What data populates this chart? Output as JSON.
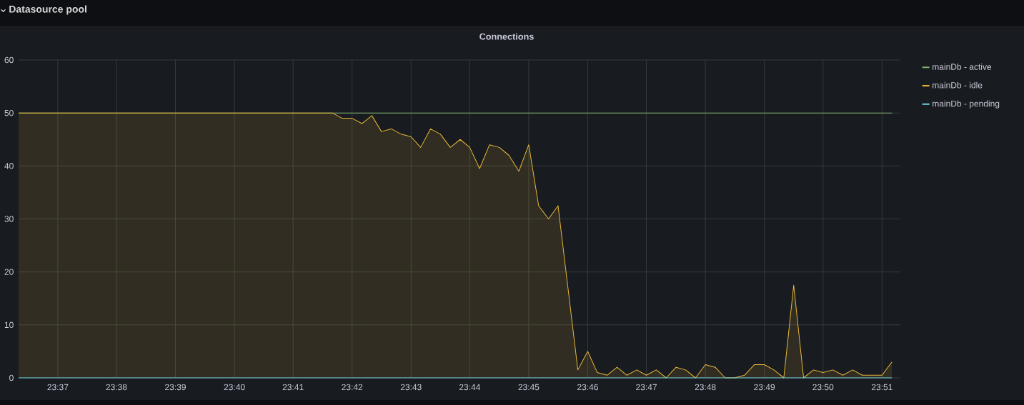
{
  "chart_data": {
    "type": "area",
    "title": "Datasource pool",
    "subtitle": "Connections",
    "xlim": [
      23.6056,
      23.8552
    ],
    "xticks": [
      {
        "value": 23.6167,
        "label": "23:37"
      },
      {
        "value": 23.6333,
        "label": "23:38"
      },
      {
        "value": 23.65,
        "label": "23:39"
      },
      {
        "value": 23.6667,
        "label": "23:40"
      },
      {
        "value": 23.6833,
        "label": "23:41"
      },
      {
        "value": 23.7,
        "label": "23:42"
      },
      {
        "value": 23.7167,
        "label": "23:43"
      },
      {
        "value": 23.7333,
        "label": "23:44"
      },
      {
        "value": 23.75,
        "label": "23:45"
      },
      {
        "value": 23.7667,
        "label": "23:46"
      },
      {
        "value": 23.7833,
        "label": "23:47"
      },
      {
        "value": 23.8,
        "label": "23:48"
      },
      {
        "value": 23.8167,
        "label": "23:49"
      },
      {
        "value": 23.8333,
        "label": "23:50"
      },
      {
        "value": 23.85,
        "label": "23:51"
      }
    ],
    "ylim": [
      0,
      60
    ],
    "yticks": [
      0,
      10,
      20,
      30,
      40,
      50,
      60
    ],
    "grid": true,
    "legend": "right",
    "series": [
      {
        "name": "mainDb - active",
        "type": "line",
        "color": "#7eb26d",
        "x": [
          23.6056,
          23.8528
        ],
        "values": [
          50,
          50
        ]
      },
      {
        "name": "mainDb - idle",
        "color": "#eab839",
        "x": [
          23.6056,
          23.6944,
          23.6972,
          23.7,
          23.7028,
          23.7056,
          23.7083,
          23.7111,
          23.7139,
          23.7167,
          23.7194,
          23.7222,
          23.725,
          23.7278,
          23.7306,
          23.7333,
          23.7361,
          23.7389,
          23.7417,
          23.7444,
          23.7472,
          23.75,
          23.7528,
          23.7556,
          23.7583,
          23.7639,
          23.7667,
          23.7694,
          23.7722,
          23.775,
          23.7778,
          23.7806,
          23.7833,
          23.7861,
          23.7889,
          23.7917,
          23.7944,
          23.7972,
          23.8,
          23.8028,
          23.8056,
          23.8083,
          23.8111,
          23.8139,
          23.8167,
          23.8194,
          23.8222,
          23.825,
          23.8278,
          23.8306,
          23.8333,
          23.8361,
          23.8389,
          23.8417,
          23.8444,
          23.8472,
          23.85,
          23.8528
        ],
        "values": [
          50,
          50,
          49,
          49,
          48,
          49.5,
          46.5,
          47,
          46,
          45.5,
          43.5,
          47,
          46,
          43.5,
          45,
          43.5,
          39.5,
          44,
          43.5,
          42,
          39,
          44,
          32.5,
          30,
          32.5,
          1.5,
          5,
          1,
          0.5,
          2,
          0.5,
          1.5,
          0.5,
          1.5,
          0,
          2,
          1.5,
          0,
          2.5,
          2,
          0,
          0,
          0.5,
          2.5,
          2.5,
          1.5,
          0,
          17.5,
          0,
          1.5,
          1,
          1.5,
          0.5,
          1.5,
          0.5,
          0.5,
          0.5,
          3
        ]
      },
      {
        "name": "mainDb - pending",
        "type": "line",
        "color": "#6ed0e0",
        "x": [
          23.6056,
          23.8528
        ],
        "values": [
          0,
          0
        ]
      }
    ]
  }
}
